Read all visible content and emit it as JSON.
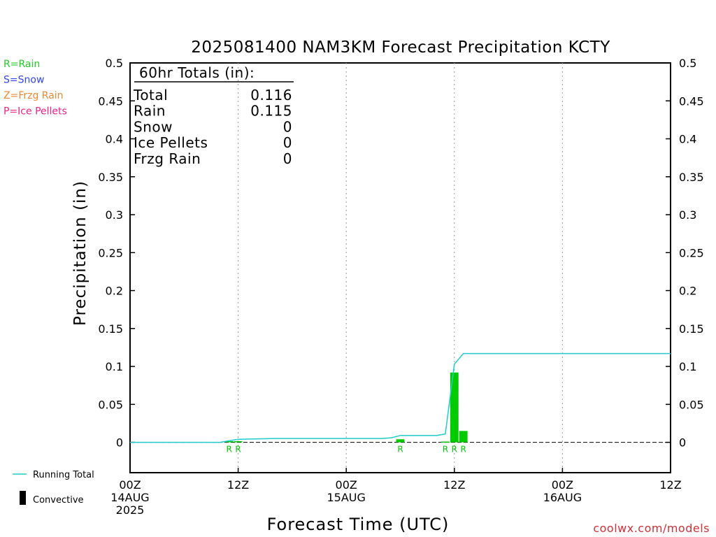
{
  "title": "2025081400 NAM3KM Forecast Precipitation KCTY",
  "ylabel": "Precipitation (in)",
  "xlabel": "Forecast Time (UTC)",
  "credit": "coolwx.com/models",
  "precip_type_legend": [
    {
      "text": "R=Rain",
      "color": "#22cc22"
    },
    {
      "text": "S=Snow",
      "color": "#3344ee"
    },
    {
      "text": "Z=Frzg Rain",
      "color": "#ee8833"
    },
    {
      "text": "P=Ice Pellets",
      "color": "#ee2288"
    }
  ],
  "series_legend": {
    "running_total": "Running Total",
    "convective": "Convective"
  },
  "totals": {
    "header": "60hr Totals (in):",
    "rows": [
      {
        "label": "Total",
        "value": "0.116"
      },
      {
        "label": "Rain",
        "value": "0.115"
      },
      {
        "label": "Snow",
        "value": "0"
      },
      {
        "label": "Ice Pellets",
        "value": "0"
      },
      {
        "label": "Frzg Rain",
        "value": "0"
      }
    ]
  },
  "colors": {
    "bar": "#00cc00",
    "running_total": "#22cccc",
    "precip_type_mark": "#00c800",
    "credit": "#d0303a"
  },
  "chart_data": {
    "type": "bar",
    "title": "2025081400 NAM3KM Forecast Precipitation KCTY",
    "xlabel": "Forecast Time (UTC)",
    "ylabel": "Precipitation (in)",
    "xlim": [
      0,
      60
    ],
    "ylim": [
      -0.04,
      0.5
    ],
    "y_ticks": [
      0,
      0.05,
      0.1,
      0.15,
      0.2,
      0.25,
      0.3,
      0.35,
      0.4,
      0.45,
      0.5
    ],
    "y_tick_labels": [
      "0",
      "0.05",
      "0.1",
      "0.15",
      "0.2",
      "0.25",
      "0.3",
      "0.35",
      "0.4",
      "0.45",
      "0.5"
    ],
    "x_ticks": [
      {
        "hour": 0,
        "lines": [
          "00Z",
          "14AUG",
          "2025"
        ]
      },
      {
        "hour": 12,
        "lines": [
          "12Z"
        ]
      },
      {
        "hour": 24,
        "lines": [
          "00Z",
          "15AUG"
        ]
      },
      {
        "hour": 36,
        "lines": [
          "12Z"
        ]
      },
      {
        "hour": 48,
        "lines": [
          "00Z",
          "16AUG"
        ]
      },
      {
        "hour": 60,
        "lines": [
          "12Z"
        ]
      }
    ],
    "grid": "vertical dotted at 12-hour ticks",
    "legend": "left margin",
    "hourly_precip": [
      {
        "hour": 11,
        "value": 0.0015
      },
      {
        "hour": 12,
        "value": 0.0015
      },
      {
        "hour": 30,
        "value": 0.004
      },
      {
        "hour": 35,
        "value": 0.001
      },
      {
        "hour": 36,
        "value": 0.092
      },
      {
        "hour": 37,
        "value": 0.015
      }
    ],
    "precip_type_marks": [
      {
        "hour": 11,
        "type": "R"
      },
      {
        "hour": 12,
        "type": "R"
      },
      {
        "hour": 30,
        "type": "R"
      },
      {
        "hour": 35,
        "type": "R"
      },
      {
        "hour": 36,
        "type": "R"
      },
      {
        "hour": 37,
        "type": "R"
      }
    ],
    "running_total": {
      "hours": [
        0,
        10,
        11,
        12,
        16,
        20,
        24,
        28,
        29,
        30,
        34,
        35,
        36,
        37,
        60
      ],
      "values": [
        0,
        0,
        0.002,
        0.004,
        0.005,
        0.005,
        0.005,
        0.005,
        0.006,
        0.009,
        0.009,
        0.011,
        0.103,
        0.117,
        0.117
      ]
    }
  }
}
